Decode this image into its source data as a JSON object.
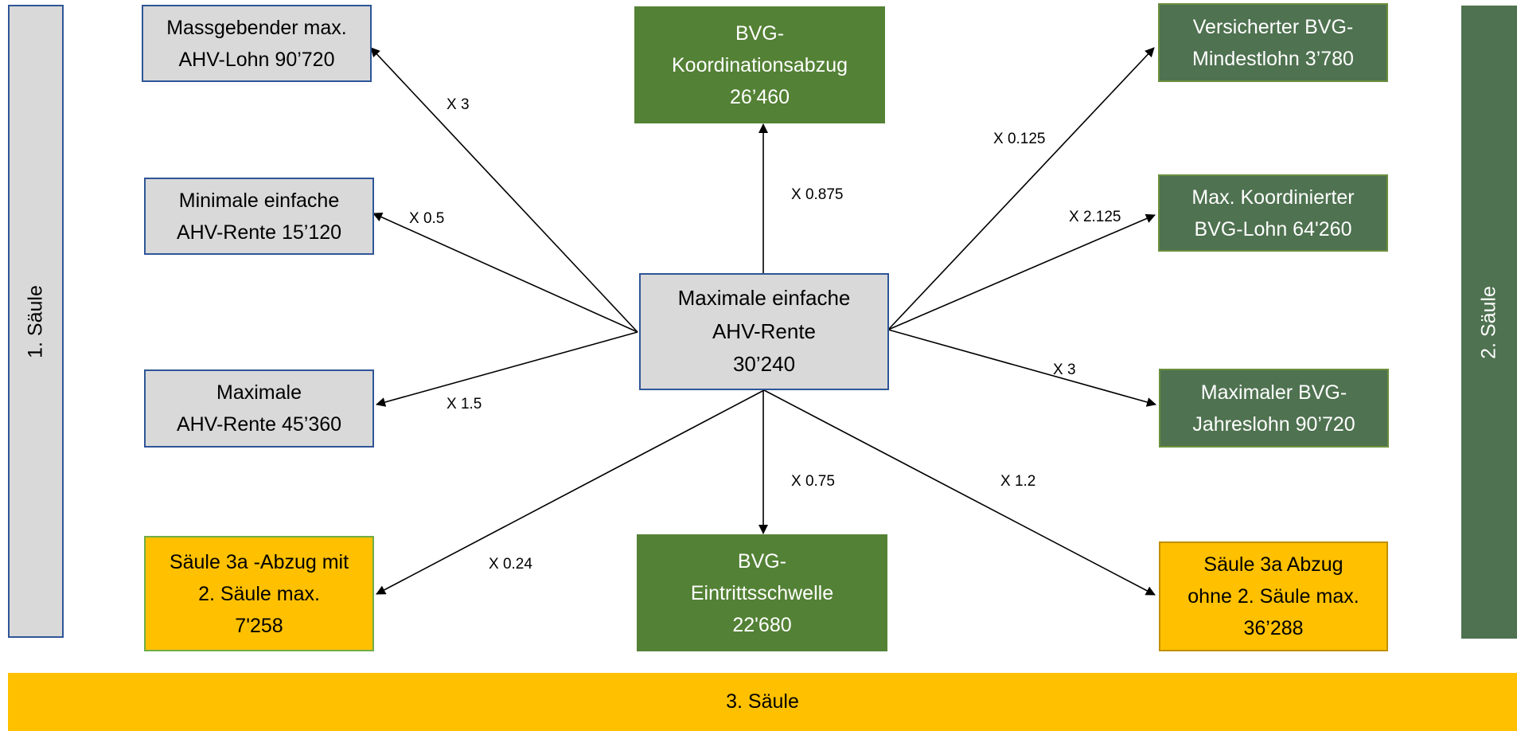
{
  "pillars": {
    "first": "1.   Säule",
    "second": "2. Säule",
    "third": "3. Säule"
  },
  "center": "Maximale einfache\nAHV-Rente\n30’240",
  "boxes": {
    "massgebender": "Massgebender max.\nAHV-Lohn 90’720",
    "minimale": "Minimale einfache\nAHV-Rente 15’120",
    "maximale": "Maximale\nAHV-Rente 45’360",
    "saeule3a_mit": "Säule 3a -Abzug mit\n2. Säule max.\n7'258",
    "koordinationsabzug": "BVG-\nKoordinationsabzug\n26’460",
    "eintrittsschwelle": "BVG-\nEintrittsschwelle\n22'680",
    "mindestlohn": "Versicherter BVG-\nMindestlohn 3’780",
    "koordinierter": "Max. Koordinierter\nBVG-Lohn 64'260",
    "jahreslohn": "Maximaler BVG-\nJahreslohn 90’720",
    "saeule3a_ohne": "Säule 3a Abzug\nohne 2. Säule max.\n36’288"
  },
  "factors": {
    "massgebender": "X 3",
    "minimale": "X 0.5",
    "maximale": "X 1.5",
    "saeule3a_mit": "X 0.24",
    "koordinationsabzug": "X 0.875",
    "eintrittsschwelle": "X 0.75",
    "mindestlohn": "X 0.125",
    "koordinierter": "X 2.125",
    "jahreslohn": "X 3",
    "saeule3a_ohne": "X 1.2"
  },
  "colors": {
    "grey": "#d9d9d9",
    "green": "#538135",
    "yellow": "#ffc000",
    "blue_border": "#2f5597"
  }
}
